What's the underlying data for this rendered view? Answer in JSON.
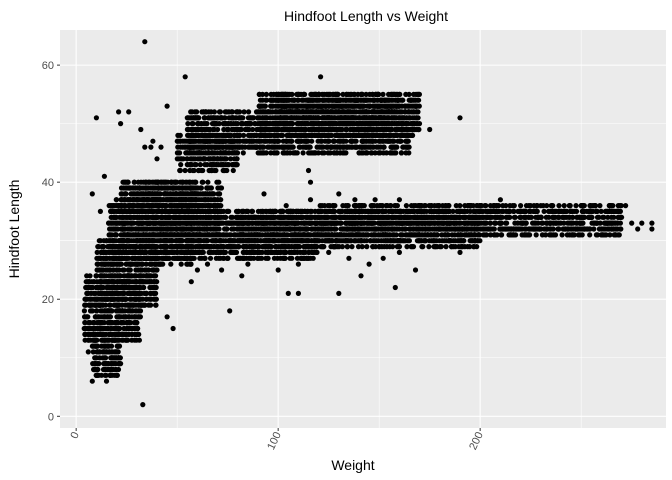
{
  "chart_data": {
    "type": "scatter",
    "title": "Hindfoot Length vs Weight",
    "xlabel": "Weight",
    "ylabel": "Hindfoot Length",
    "xlim": [
      -8,
      292
    ],
    "ylim": [
      -2,
      66
    ],
    "x_ticks": [
      0,
      100,
      200
    ],
    "x_tick_labels": [
      "0",
      "100",
      "200"
    ],
    "x_minor_ticks": [
      50,
      150,
      250
    ],
    "y_ticks": [
      0,
      20,
      40,
      60
    ],
    "y_tick_labels": [
      "0",
      "20",
      "40",
      "60"
    ],
    "y_minor_ticks": [
      10,
      30,
      50
    ],
    "x_tick_label_rotation_deg": -65,
    "grid": true,
    "legend": "none",
    "colors": {
      "panel": "#ebebeb",
      "grid": "#ffffff",
      "point": "#000000"
    },
    "point_style": "filled circle",
    "clusters": [
      {
        "x": [
          4,
          32
        ],
        "y": [
          13,
          24
        ]
      },
      {
        "x": [
          8,
          22
        ],
        "y": [
          7,
          16
        ]
      },
      {
        "x": [
          10,
          40
        ],
        "y": [
          19,
          30
        ]
      },
      {
        "x": [
          16,
          58
        ],
        "y": [
          26,
          37
        ]
      },
      {
        "x": [
          22,
          72
        ],
        "y": [
          30,
          40
        ]
      },
      {
        "x": [
          30,
          60
        ],
        "y": [
          36,
          40
        ]
      },
      {
        "x": [
          42,
          120
        ],
        "y": [
          27,
          35
        ]
      },
      {
        "x": [
          80,
          200
        ],
        "y": [
          29,
          35
        ]
      },
      {
        "x": [
          120,
          270
        ],
        "y": [
          31,
          36
        ]
      },
      {
        "x": [
          55,
          165
        ],
        "y": [
          45,
          52
        ]
      },
      {
        "x": [
          90,
          170
        ],
        "y": [
          48,
          55
        ]
      },
      {
        "x": [
          100,
          160
        ],
        "y": [
          51,
          55
        ]
      },
      {
        "x": [
          50,
          80
        ],
        "y": [
          42,
          48
        ]
      }
    ],
    "points": [
      [
        34,
        64
      ],
      [
        54,
        58
      ],
      [
        121,
        58
      ],
      [
        45,
        53
      ],
      [
        26,
        52
      ],
      [
        21,
        52
      ],
      [
        10,
        51
      ],
      [
        190,
        51
      ],
      [
        22,
        50
      ],
      [
        175,
        49
      ],
      [
        32,
        49
      ],
      [
        38,
        47
      ],
      [
        37,
        46
      ],
      [
        34,
        46
      ],
      [
        40,
        44
      ],
      [
        42,
        46
      ],
      [
        115,
        42
      ],
      [
        116,
        40
      ],
      [
        93,
        38
      ],
      [
        130,
        38
      ],
      [
        116,
        37
      ],
      [
        138,
        37
      ],
      [
        8,
        38
      ],
      [
        12,
        35
      ],
      [
        14,
        41
      ],
      [
        6,
        21
      ],
      [
        4,
        15
      ],
      [
        8,
        6
      ],
      [
        6,
        11
      ],
      [
        10,
        7
      ],
      [
        15,
        6
      ],
      [
        14,
        8
      ],
      [
        16,
        9
      ],
      [
        20,
        10
      ],
      [
        25,
        13
      ],
      [
        30,
        16
      ],
      [
        45,
        17
      ],
      [
        48,
        15
      ],
      [
        33,
        2
      ],
      [
        76,
        18
      ],
      [
        105,
        21
      ],
      [
        110,
        21
      ],
      [
        130,
        21
      ],
      [
        141,
        24
      ],
      [
        158,
        22
      ],
      [
        168,
        25
      ],
      [
        255,
        34
      ],
      [
        258,
        33
      ],
      [
        260,
        32
      ],
      [
        265,
        34
      ],
      [
        270,
        34
      ],
      [
        275,
        33
      ],
      [
        278,
        32
      ],
      [
        280,
        33
      ],
      [
        285,
        33
      ],
      [
        285,
        32
      ],
      [
        272,
        36
      ],
      [
        254,
        34
      ],
      [
        250,
        36
      ],
      [
        240,
        35
      ],
      [
        235,
        33
      ],
      [
        230,
        36
      ],
      [
        220,
        36
      ],
      [
        210,
        37
      ],
      [
        205,
        33
      ],
      [
        195,
        31
      ],
      [
        190,
        28
      ],
      [
        185,
        30
      ],
      [
        178,
        29
      ],
      [
        172,
        30
      ],
      [
        165,
        31
      ],
      [
        160,
        28
      ],
      [
        152,
        27
      ],
      [
        145,
        26
      ],
      [
        135,
        27
      ],
      [
        125,
        28
      ],
      [
        110,
        26
      ],
      [
        100,
        25
      ],
      [
        95,
        27
      ],
      [
        85,
        26
      ],
      [
        82,
        24
      ],
      [
        72,
        25
      ],
      [
        65,
        26
      ],
      [
        60,
        25
      ],
      [
        57,
        23
      ],
      [
        70,
        28
      ],
      [
        75,
        29
      ],
      [
        80,
        30
      ],
      [
        88,
        31
      ],
      [
        92,
        33
      ],
      [
        96,
        30
      ],
      [
        104,
        36
      ],
      [
        102,
        35
      ],
      [
        140,
        36
      ],
      [
        148,
        37
      ],
      [
        150,
        35
      ],
      [
        160,
        37
      ],
      [
        170,
        36
      ],
      [
        180,
        35
      ],
      [
        200,
        36
      ],
      [
        225,
        34
      ],
      [
        245,
        33
      ],
      [
        12,
        25
      ],
      [
        18,
        23
      ],
      [
        28,
        22
      ],
      [
        35,
        24
      ],
      [
        40,
        25
      ],
      [
        50,
        27
      ],
      [
        55,
        30
      ],
      [
        60,
        35
      ],
      [
        65,
        38
      ],
      [
        68,
        36
      ],
      [
        70,
        34
      ],
      [
        78,
        33
      ]
    ]
  }
}
